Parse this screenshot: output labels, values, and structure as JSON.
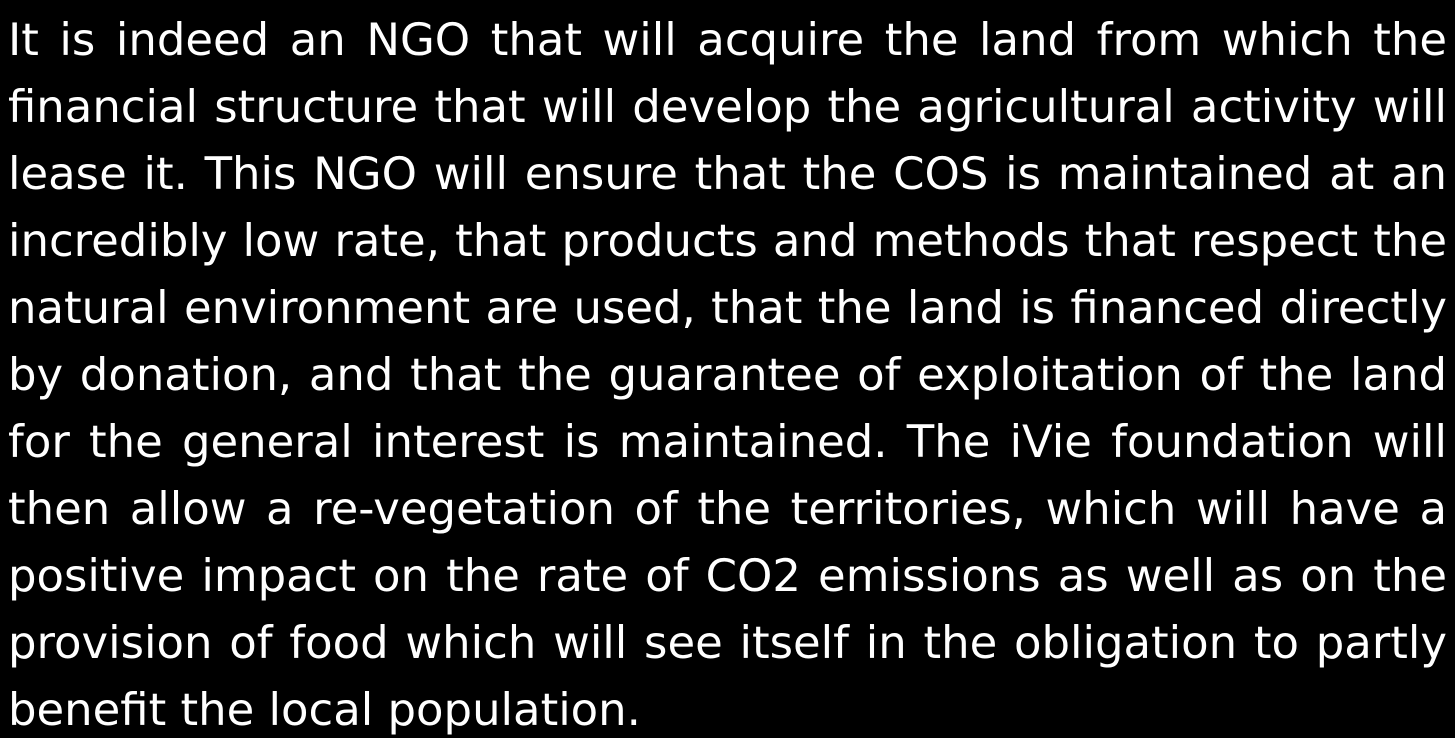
{
  "paragraph": {
    "lines": [
      "It is indeed an NGO that will acquire the land from which the",
      "financial structure that will develop the agricultural activity will",
      "lease it. This NGO will ensure that the COS is maintained at an",
      "incredibly low rate, that products and methods that respect the",
      "natural environment are used, that the land is financed directly",
      "by donation, and that the guarantee of exploitation of the land",
      "for the general interest is maintained. The iVie foundation will",
      "then allow a re-vegetation of the territories, which will have a",
      "positive impact on the rate of CO2 emissions as well as on the",
      "provision of food which will see itself in the obligation to partly",
      "benefit the local population."
    ]
  }
}
